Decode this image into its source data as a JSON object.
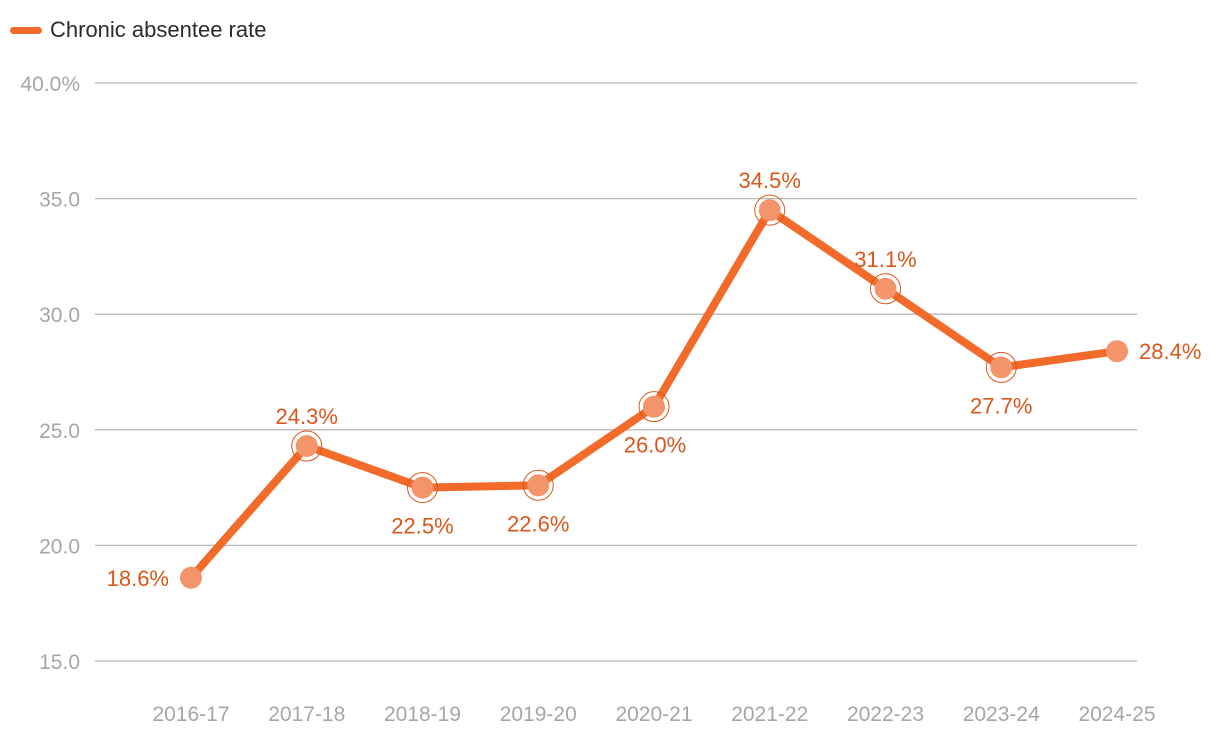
{
  "chart_data": {
    "type": "line",
    "title": "",
    "xlabel": "",
    "ylabel": "",
    "categories": [
      "2016-17",
      "2017-18",
      "2018-19",
      "2019-20",
      "2020-21",
      "2021-22",
      "2022-23",
      "2023-24",
      "2024-25"
    ],
    "series": [
      {
        "name": "Chronic absentee rate",
        "color": "#f26b2a",
        "values": [
          18.6,
          24.3,
          22.5,
          22.6,
          26.0,
          34.5,
          31.1,
          27.7,
          28.4
        ],
        "labels": [
          "18.6%",
          "24.3%",
          "22.5%",
          "22.6%",
          "26.0%",
          "34.5%",
          "31.1%",
          "27.7%",
          "28.4%"
        ]
      }
    ],
    "ylim": [
      15,
      40
    ],
    "y_ticks": [
      15,
      20,
      25,
      30,
      35,
      40
    ],
    "y_tick_labels": [
      "15.0",
      "20.0",
      "25.0",
      "30.0",
      "35.0",
      "40.0%"
    ],
    "grid": true,
    "legend_position": "top-left",
    "colors": {
      "line": "#f26b2a",
      "marker": "#f4946a",
      "label": "#d9571a",
      "grid": "#b9b9b9",
      "tick": "#a6a6a6"
    }
  }
}
